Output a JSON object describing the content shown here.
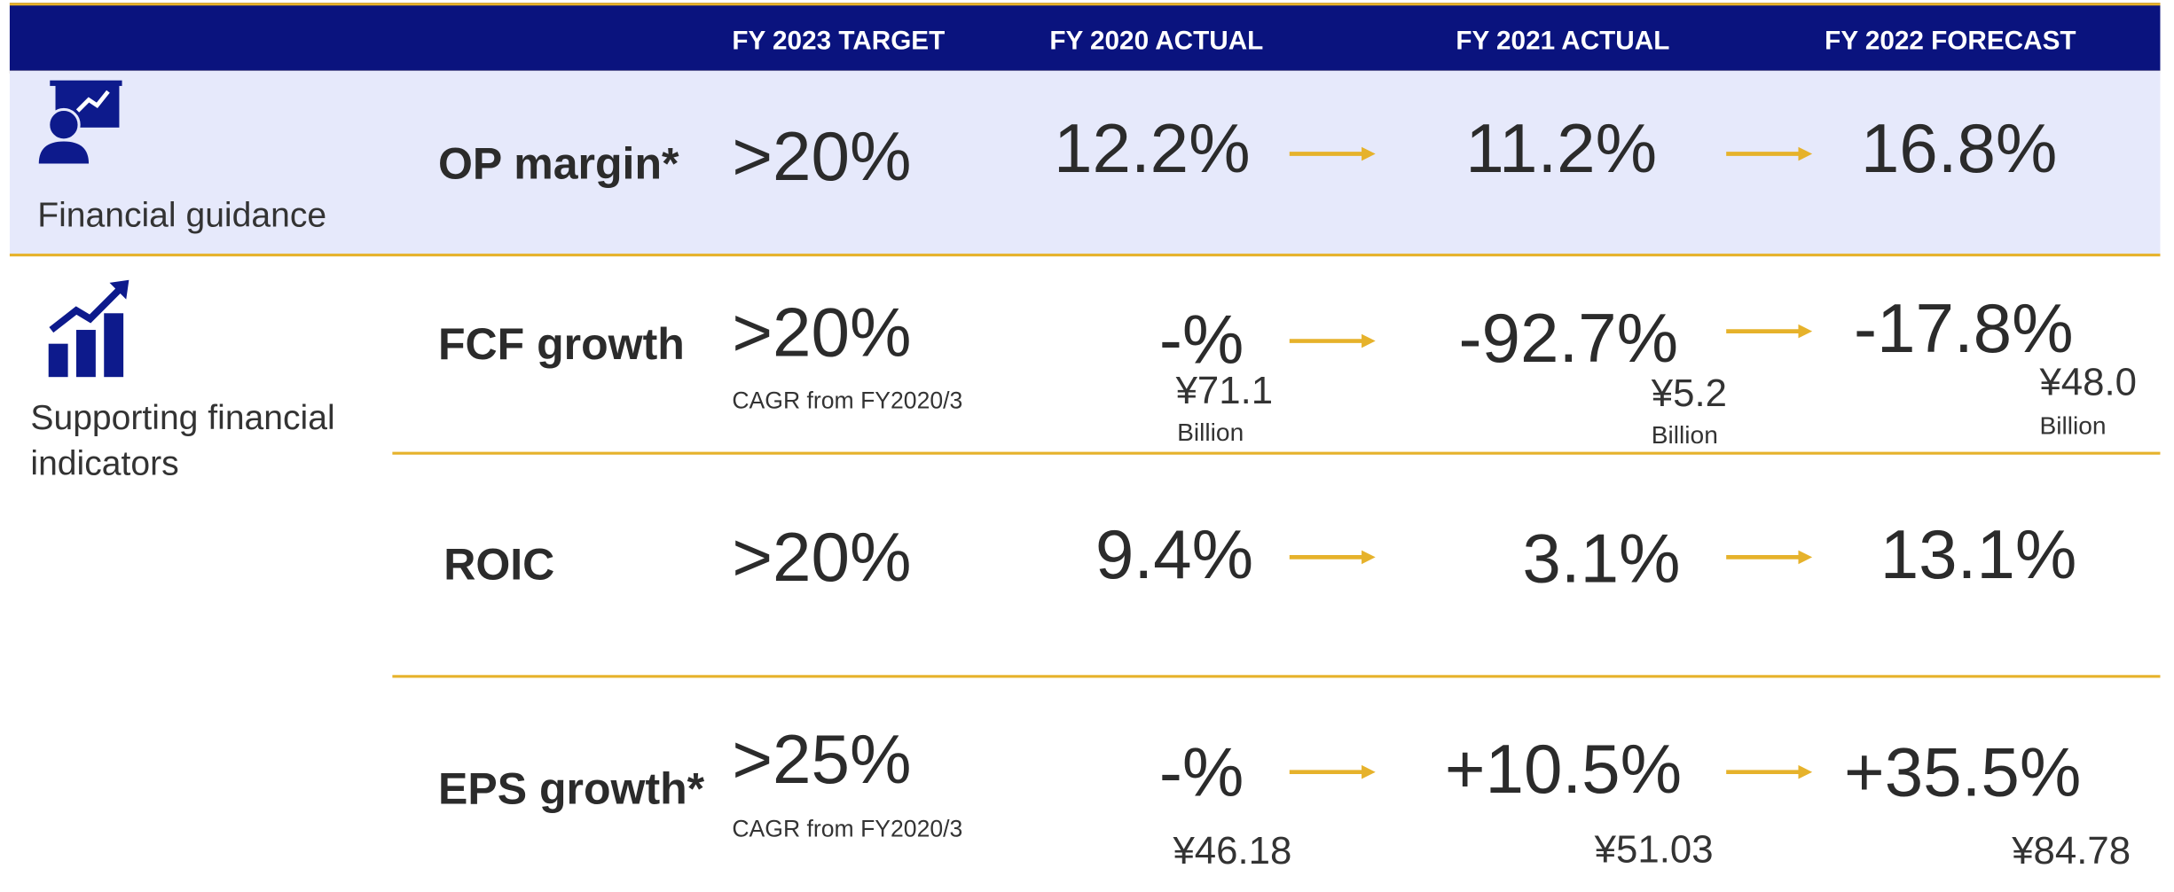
{
  "header": {
    "columns": [
      "FY 2023 TARGET",
      "FY 2020 ACTUAL",
      "FY 2021 ACTUAL",
      "FY 2022 FORECAST"
    ]
  },
  "sections": [
    {
      "title": "Financial guidance"
    },
    {
      "title_lines": [
        "Supporting financial",
        "indicators"
      ]
    }
  ],
  "rows": [
    {
      "label": "OP margin*",
      "target": ">20%",
      "values": [
        "12.2%",
        "11.2%",
        "16.8%"
      ]
    },
    {
      "label": "FCF growth",
      "target": ">20%",
      "target_note": "CAGR from FY2020/3",
      "values": [
        "-%",
        "-92.7%",
        "-17.8%"
      ],
      "amounts": [
        {
          "amount": "¥71.1",
          "unit": "Billion"
        },
        {
          "amount": "¥5.2",
          "unit": "Billion"
        },
        {
          "amount": "¥48.0",
          "unit": "Billion"
        }
      ]
    },
    {
      "label": "ROIC",
      "target": ">20%",
      "values": [
        "9.4%",
        "3.1%",
        "13.1%"
      ]
    },
    {
      "label": "EPS growth*",
      "target": ">25%",
      "target_note": "CAGR from FY2020/3",
      "values": [
        "-%",
        "+10.5%",
        "+35.5%"
      ],
      "amounts": [
        {
          "amount": "¥46.18"
        },
        {
          "amount": "¥51.03"
        },
        {
          "amount": "¥84.78"
        }
      ]
    }
  ]
}
